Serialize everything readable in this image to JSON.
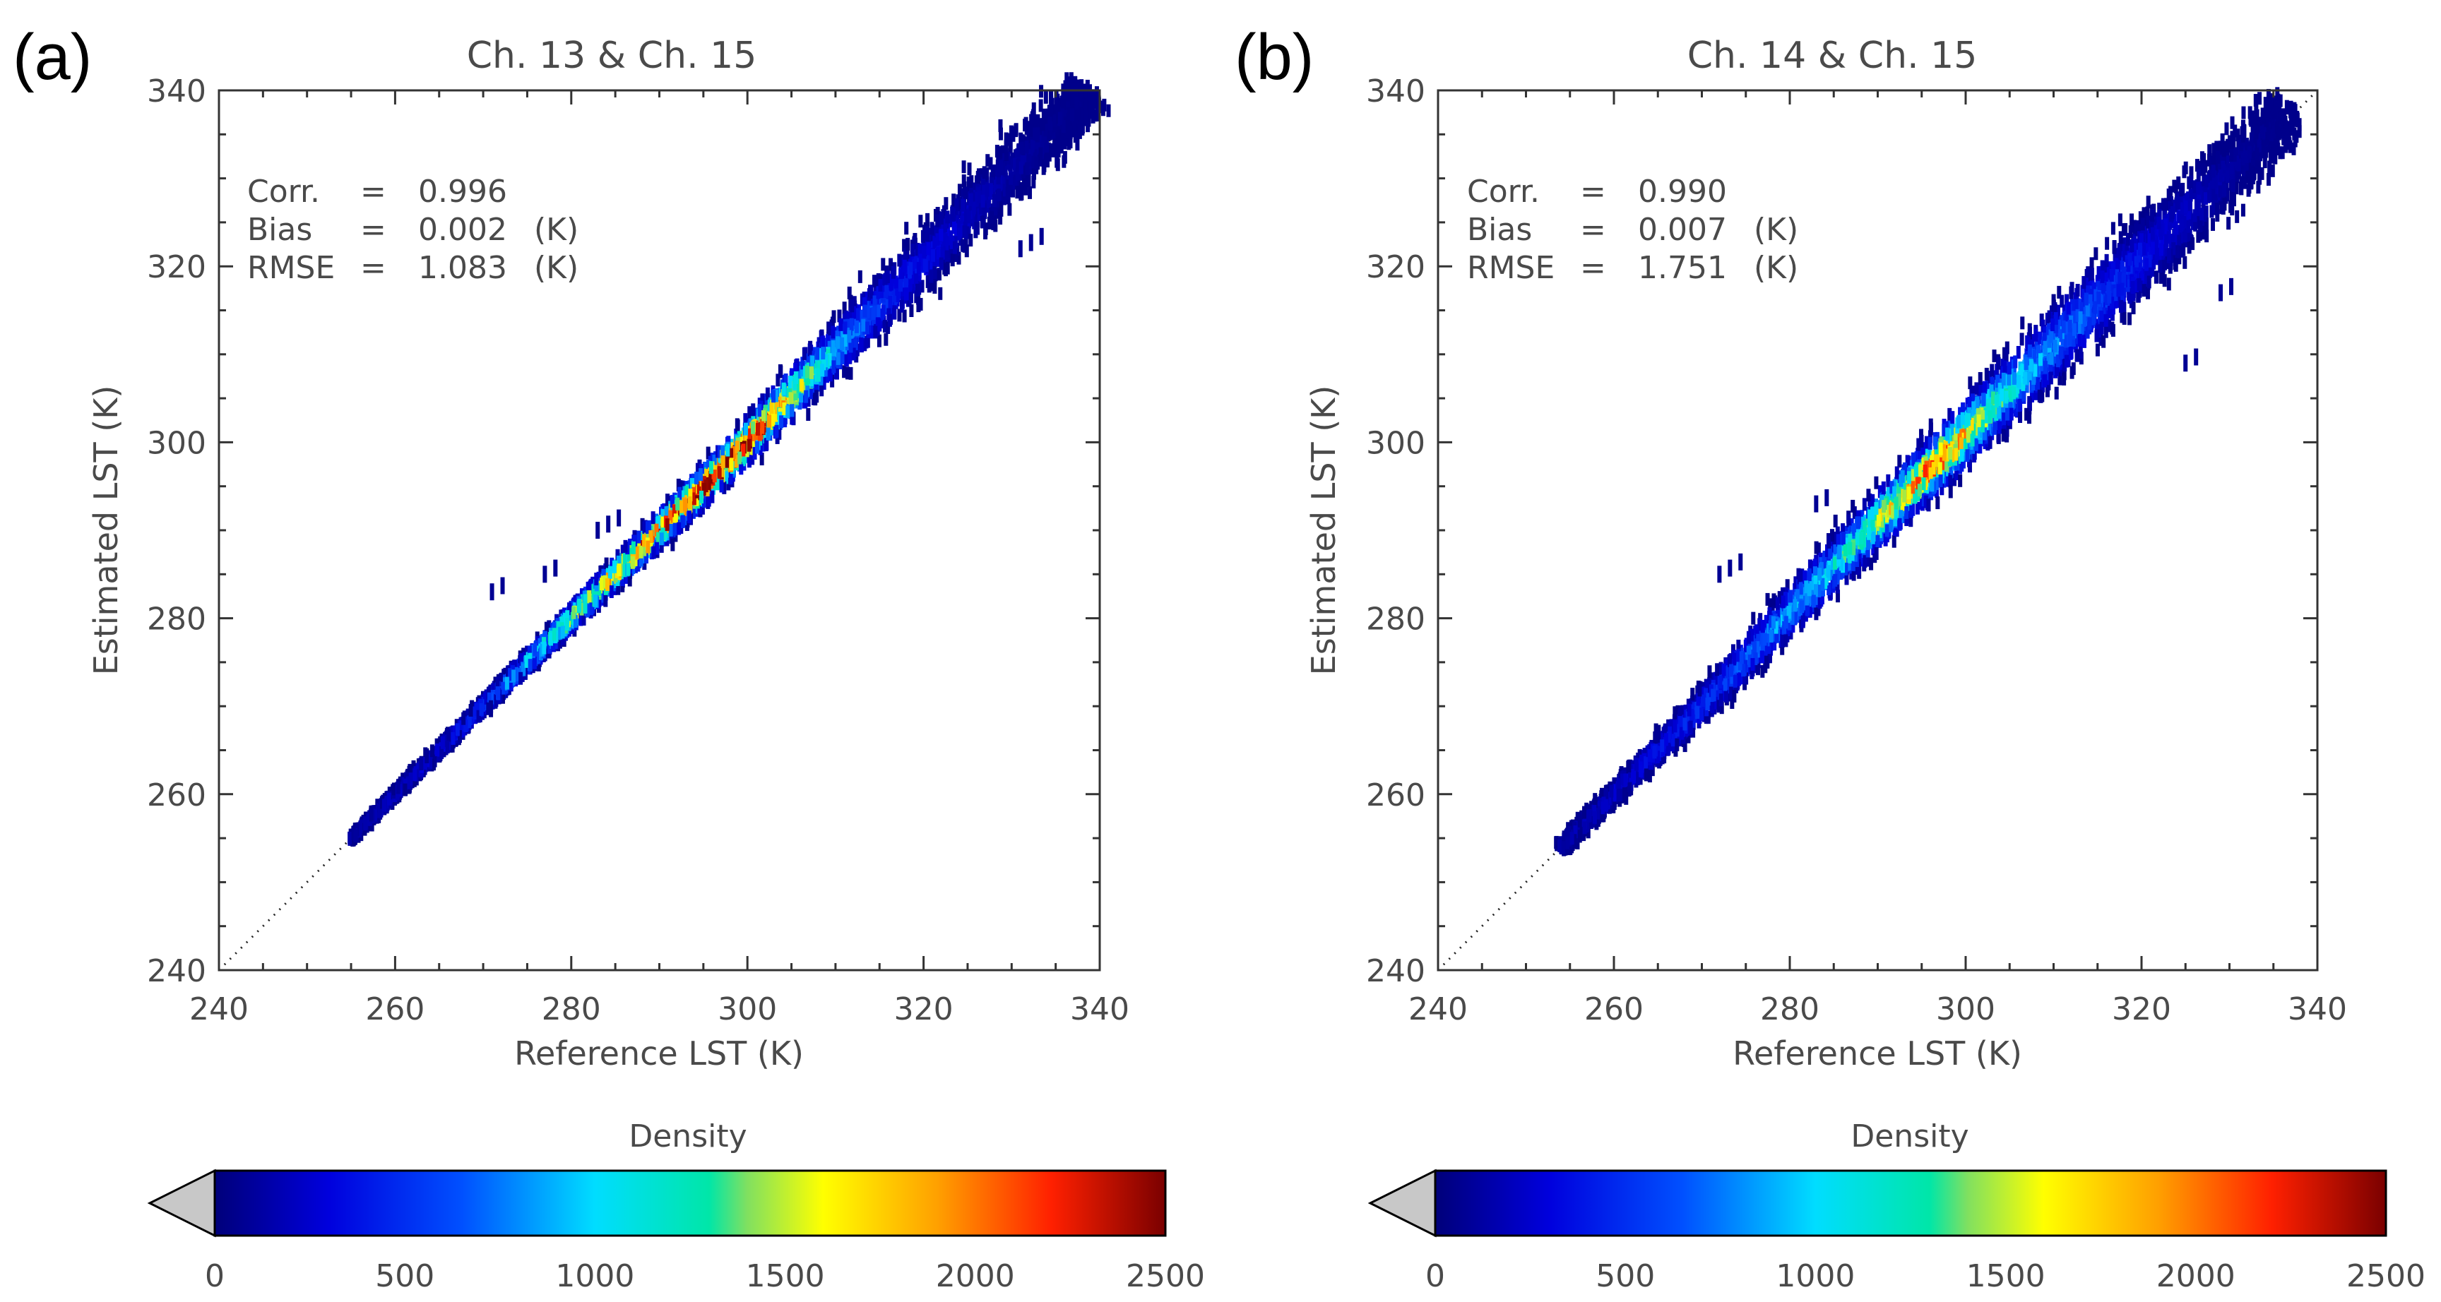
{
  "chart_data": [
    {
      "type": "scatter",
      "panel": "(a)",
      "title": "Ch. 13 & Ch. 15",
      "xlabel": "Reference LST (K)",
      "ylabel": "Estimated LST (K)",
      "xlim": [
        240,
        340
      ],
      "ylim": [
        240,
        340
      ],
      "xticks": [
        240,
        260,
        280,
        300,
        320,
        340
      ],
      "yticks": [
        240,
        260,
        280,
        300,
        320,
        340
      ],
      "stats": [
        {
          "name": "Corr.",
          "eq": "=",
          "value": "0.996",
          "unit": ""
        },
        {
          "name": "Bias",
          "eq": "=",
          "value": "0.002",
          "unit": "(K)"
        },
        {
          "name": "RMSE",
          "eq": "=",
          "value": "1.083",
          "unit": "(K)"
        }
      ],
      "one_to_one_line": {
        "from": [
          240,
          240
        ],
        "to": [
          340,
          340
        ],
        "style": "dotted"
      },
      "density_spine": [
        {
          "x": 255,
          "y": 255,
          "w": 0.6,
          "d": 150
        },
        {
          "x": 262,
          "y": 262,
          "w": 0.8,
          "d": 250
        },
        {
          "x": 270,
          "y": 270,
          "w": 1.0,
          "d": 500
        },
        {
          "x": 276,
          "y": 276,
          "w": 1.3,
          "d": 1100
        },
        {
          "x": 282,
          "y": 282,
          "w": 1.6,
          "d": 1600
        },
        {
          "x": 288,
          "y": 288,
          "w": 1.9,
          "d": 2100
        },
        {
          "x": 294,
          "y": 294,
          "w": 2.2,
          "d": 2450
        },
        {
          "x": 300,
          "y": 300,
          "w": 2.4,
          "d": 2500
        },
        {
          "x": 305,
          "y": 305.5,
          "w": 2.8,
          "d": 1700
        },
        {
          "x": 311,
          "y": 311.5,
          "w": 3.3,
          "d": 800
        },
        {
          "x": 318,
          "y": 318.5,
          "w": 3.8,
          "d": 400
        },
        {
          "x": 326,
          "y": 327,
          "w": 4.2,
          "d": 200
        },
        {
          "x": 334,
          "y": 335,
          "w": 4.2,
          "d": 80
        },
        {
          "x": 339,
          "y": 340,
          "w": 3.5,
          "d": 40
        }
      ],
      "outlier_clusters": [
        {
          "x": 271,
          "y": 283,
          "n": 2
        },
        {
          "x": 277,
          "y": 285,
          "n": 2
        },
        {
          "x": 283,
          "y": 290,
          "n": 3
        },
        {
          "x": 331,
          "y": 322,
          "n": 3
        }
      ]
    },
    {
      "type": "scatter",
      "panel": "(b)",
      "title": "Ch. 14 & Ch. 15",
      "xlabel": "Reference LST (K)",
      "ylabel": "Estimated LST (K)",
      "xlim": [
        240,
        340
      ],
      "ylim": [
        240,
        340
      ],
      "xticks": [
        240,
        260,
        280,
        300,
        320,
        340
      ],
      "yticks": [
        240,
        260,
        280,
        300,
        320,
        340
      ],
      "stats": [
        {
          "name": "Corr.",
          "eq": "=",
          "value": "0.990",
          "unit": ""
        },
        {
          "name": "Bias",
          "eq": "=",
          "value": "0.007",
          "unit": "(K)"
        },
        {
          "name": "RMSE",
          "eq": "=",
          "value": "1.751",
          "unit": "(K)"
        }
      ],
      "one_to_one_line": {
        "from": [
          240,
          240
        ],
        "to": [
          340,
          340
        ],
        "style": "dotted"
      },
      "density_spine": [
        {
          "x": 254,
          "y": 254,
          "w": 1.2,
          "d": 150
        },
        {
          "x": 262,
          "y": 262,
          "w": 1.6,
          "d": 300
        },
        {
          "x": 270,
          "y": 270,
          "w": 2.2,
          "d": 500
        },
        {
          "x": 278,
          "y": 278.5,
          "w": 2.8,
          "d": 800
        },
        {
          "x": 286,
          "y": 287,
          "w": 3.2,
          "d": 1200
        },
        {
          "x": 292,
          "y": 293,
          "w": 3.4,
          "d": 1700
        },
        {
          "x": 297,
          "y": 298,
          "w": 3.6,
          "d": 2100
        },
        {
          "x": 302,
          "y": 303,
          "w": 3.8,
          "d": 1500
        },
        {
          "x": 308,
          "y": 309,
          "w": 4.2,
          "d": 900
        },
        {
          "x": 315,
          "y": 316,
          "w": 4.8,
          "d": 600
        },
        {
          "x": 322,
          "y": 323,
          "w": 5.0,
          "d": 300
        },
        {
          "x": 330,
          "y": 331,
          "w": 5.0,
          "d": 120
        },
        {
          "x": 337,
          "y": 338,
          "w": 4.0,
          "d": 40
        }
      ],
      "outlier_clusters": [
        {
          "x": 272,
          "y": 285,
          "n": 3
        },
        {
          "x": 283,
          "y": 293,
          "n": 2
        },
        {
          "x": 329,
          "y": 317,
          "n": 2
        },
        {
          "x": 325,
          "y": 309,
          "n": 2
        }
      ]
    }
  ],
  "colorbar": {
    "title": "Density",
    "min": 0,
    "max": 2500,
    "ticks": [
      0,
      500,
      1000,
      1500,
      2000,
      2500
    ],
    "below_min_color": "#c8c8c8",
    "colormap": [
      [
        0.0,
        "#00007a"
      ],
      [
        0.12,
        "#0000dd"
      ],
      [
        0.26,
        "#0050ff"
      ],
      [
        0.4,
        "#00ddff"
      ],
      [
        0.52,
        "#00e6a8"
      ],
      [
        0.56,
        "#80e060"
      ],
      [
        0.64,
        "#ffff00"
      ],
      [
        0.76,
        "#ffa000"
      ],
      [
        0.88,
        "#ff2000"
      ],
      [
        1.0,
        "#7a0000"
      ]
    ]
  }
}
